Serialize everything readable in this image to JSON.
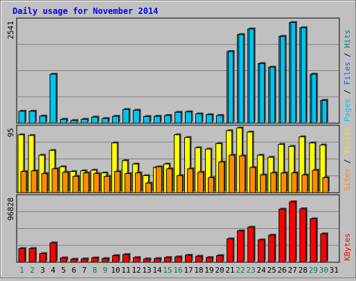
{
  "chart_data": {
    "type": "bar",
    "title": "Daily usage for November 2014",
    "days": [
      "1",
      "2",
      "3",
      "4",
      "5",
      "6",
      "7",
      "8",
      "9",
      "10",
      "11",
      "12",
      "13",
      "14",
      "15",
      "16",
      "17",
      "18",
      "19",
      "20",
      "21",
      "22",
      "23",
      "24",
      "25",
      "26",
      "27",
      "28",
      "29",
      "30",
      "31"
    ],
    "weekend_days": [
      1,
      2,
      8,
      9,
      15,
      16,
      22,
      23,
      29,
      30
    ],
    "panels": [
      {
        "id": "hits",
        "ymax_label": "2541",
        "ymax": 2541,
        "series": [
          {
            "name": "Pages",
            "color": "#00c4f0",
            "values": [
              0,
              0,
              0,
              0,
              0,
              0,
              0,
              0,
              0,
              0,
              0,
              0,
              0,
              0,
              0,
              0,
              0,
              0,
              0,
              0,
              1780,
              2200,
              2340,
              1480,
              1390,
              2155,
              2500,
              2370,
              1215,
              565,
              0
            ]
          },
          {
            "name": "Files",
            "color": "#00a0d0",
            "values": [
              0,
              0,
              0,
              0,
              0,
              0,
              0,
              0,
              0,
              0,
              0,
              0,
              0,
              0,
              0,
              0,
              0,
              0,
              0,
              0,
              0,
              0,
              0,
              0,
              0,
              0,
              0,
              0,
              0,
              0,
              0
            ]
          },
          {
            "name": "Hits",
            "color": "#00c4f0",
            "values": [
              295,
              295,
              175,
              1215,
              95,
              65,
              95,
              150,
              115,
              170,
              340,
              320,
              165,
              170,
              190,
              270,
              280,
              230,
              210,
              190,
              1780,
              2200,
              2340,
              1480,
              1390,
              2155,
              2500,
              2370,
              1215,
              565,
              0
            ]
          }
        ],
        "legend": [
          {
            "text": "Pages",
            "color": "#00c4f0"
          },
          {
            "text": " / ",
            "color": "#000000"
          },
          {
            "text": "Files",
            "color": "#0060ff"
          },
          {
            "text": " / ",
            "color": "#000000"
          },
          {
            "text": "Hits",
            "color": "#00806f"
          }
        ]
      },
      {
        "id": "visits",
        "ymax_label": "95",
        "ymax": 95,
        "series": [
          {
            "name": "Visits",
            "color": "#ffff00",
            "values": [
              85,
              84,
              55,
              62,
              38,
              31,
              32,
              33,
              29,
              73,
              47,
              42,
              25,
              37,
              42,
              85,
              81,
              66,
              64,
              72,
              91,
              95,
              89,
              55,
              52,
              71,
              68,
              82,
              73,
              70,
              0
            ]
          },
          {
            "name": "Sites",
            "color": "#ff8c00",
            "values": [
              31,
              32,
              28,
              35,
              30,
              24,
              29,
              28,
              24,
              31,
              28,
              29,
              14,
              38,
              35,
              25,
              35,
              30,
              22,
              45,
              55,
              54,
              37,
              26,
              29,
              29,
              29,
              26,
              33,
              22,
              0
            ]
          }
        ],
        "legend": [
          {
            "text": "Sites",
            "color": "#ff8c00"
          },
          {
            "text": " / ",
            "color": "#000000"
          },
          {
            "text": "Visits",
            "color": "#e8e800"
          }
        ]
      },
      {
        "id": "kbytes",
        "ymax_label": "96828",
        "ymax": 96828,
        "series": [
          {
            "name": "KBytes",
            "color": "#ff0000",
            "values": [
              20500,
              20500,
              13000,
              29000,
              6500,
              4500,
              5000,
              6500,
              5500,
              10000,
              11500,
              7000,
              5000,
              5500,
              7000,
              8000,
              10500,
              9000,
              7000,
              10000,
              35000,
              47000,
              52500,
              33500,
              40500,
              79500,
              90500,
              80000,
              65000,
              42500,
              0
            ]
          }
        ],
        "legend": [
          {
            "text": "KBytes",
            "color": "#ff0000"
          }
        ]
      }
    ],
    "colors": {
      "background": "#c0c0c0",
      "title": "#0000ff",
      "weekday_label": "#000000",
      "weekend_label": "#00805a"
    },
    "grid": true
  }
}
